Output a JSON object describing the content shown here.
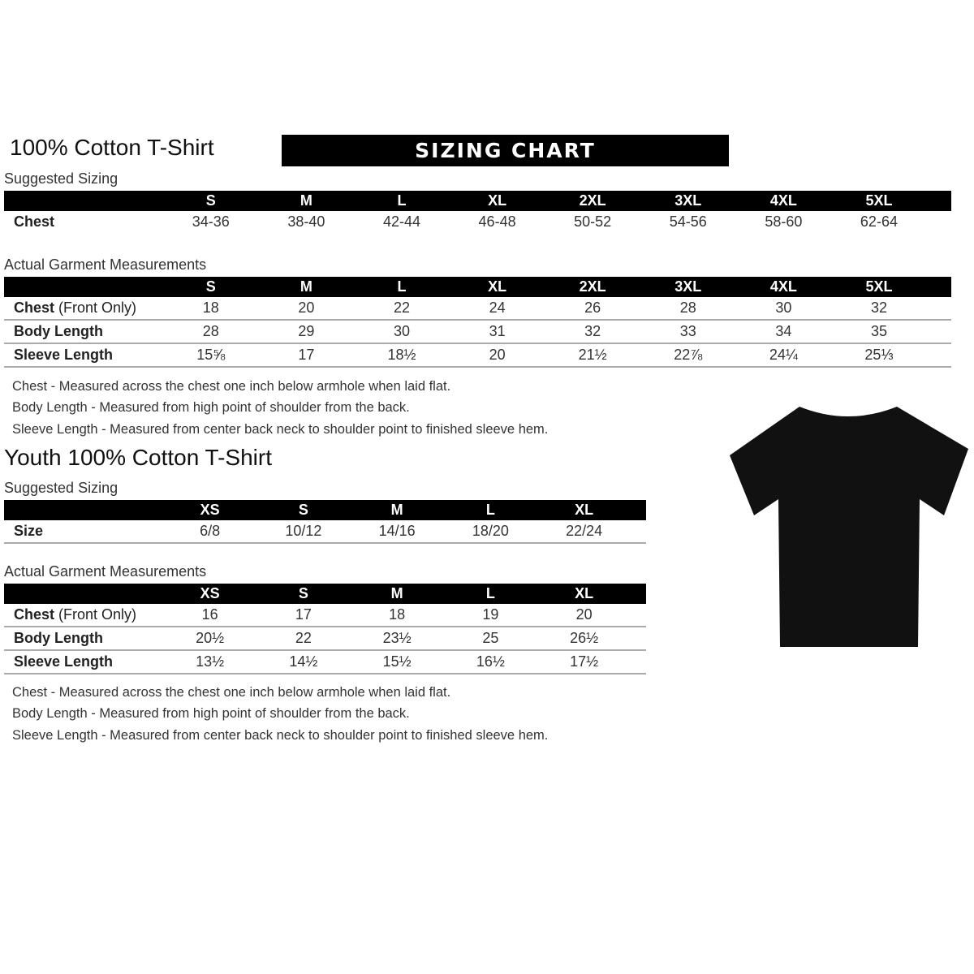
{
  "adult": {
    "title": "100% Cotton T-Shirt",
    "banner": "SIZING CHART",
    "suggested_label": "Suggested Sizing",
    "suggested": {
      "sizes": [
        "S",
        "M",
        "L",
        "XL",
        "2XL",
        "3XL",
        "4XL",
        "5XL"
      ],
      "rows": [
        {
          "label": "Chest",
          "values": [
            "34-36",
            "38-40",
            "42-44",
            "46-48",
            "50-52",
            "54-56",
            "58-60",
            "62-64"
          ]
        }
      ]
    },
    "actual_label": "Actual Garment Measurements",
    "actual": {
      "sizes": [
        "S",
        "M",
        "L",
        "XL",
        "2XL",
        "3XL",
        "4XL",
        "5XL"
      ],
      "rows": [
        {
          "label": "Chest",
          "label_note": "(Front Only)",
          "values": [
            "18",
            "20",
            "22",
            "24",
            "26",
            "28",
            "30",
            "32"
          ]
        },
        {
          "label": "Body Length",
          "values": [
            "28",
            "29",
            "30",
            "31",
            "32",
            "33",
            "34",
            "35"
          ]
        },
        {
          "label": "Sleeve Length",
          "values": [
            "15⅝",
            "17",
            "18½",
            "20",
            "21½",
            "22⅞",
            "24¼",
            "25⅓"
          ]
        }
      ]
    },
    "notes": [
      "Chest - Measured across the chest one inch below armhole when laid flat.",
      "Body Length - Measured from high point of shoulder from the back.",
      "Sleeve Length - Measured from center back neck to shoulder point to finished sleeve hem."
    ]
  },
  "youth": {
    "title": "Youth 100% Cotton T-Shirt",
    "suggested_label": "Suggested Sizing",
    "suggested": {
      "sizes": [
        "XS",
        "S",
        "M",
        "L",
        "XL"
      ],
      "rows": [
        {
          "label": "Size",
          "values": [
            "6/8",
            "10/12",
            "14/16",
            "18/20",
            "22/24"
          ]
        }
      ]
    },
    "actual_label": "Actual Garment Measurements",
    "actual": {
      "sizes": [
        "XS",
        "S",
        "M",
        "L",
        "XL"
      ],
      "rows": [
        {
          "label": "Chest",
          "label_note": "(Front Only)",
          "values": [
            "16",
            "17",
            "18",
            "19",
            "20"
          ]
        },
        {
          "label": "Body Length",
          "values": [
            "20½",
            "22",
            "23½",
            "25",
            "26½"
          ]
        },
        {
          "label": "Sleeve Length",
          "values": [
            "13½",
            "14½",
            "15½",
            "16½",
            "17½"
          ]
        }
      ]
    },
    "notes": [
      "Chest - Measured across the chest one inch below armhole when laid flat.",
      "Body Length - Measured from high point of shoulder from the back.",
      "Sleeve Length - Measured from center back neck to shoulder point to finished sleeve hem."
    ]
  },
  "image": {
    "tshirt_color": "#111111"
  }
}
